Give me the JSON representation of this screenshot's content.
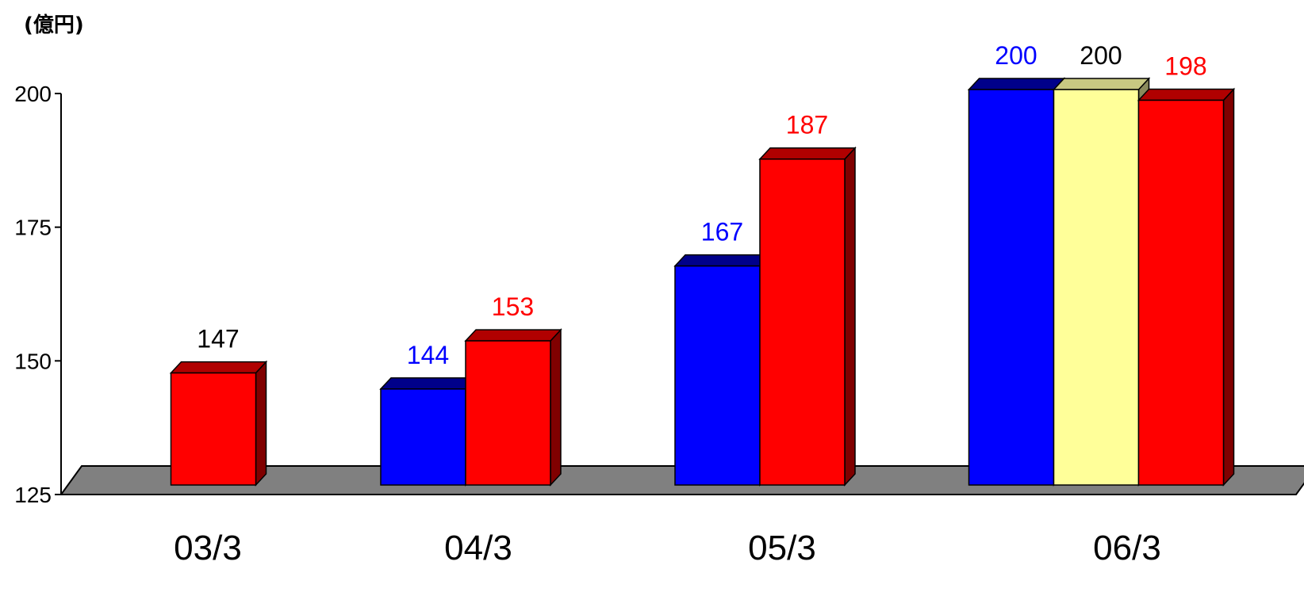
{
  "chart_data": {
    "type": "bar",
    "unit_label": "(億円)",
    "categories": [
      "03/3",
      "04/3",
      "05/3",
      "06/3"
    ],
    "ylim": [
      125,
      200
    ],
    "yticks": [
      125,
      150,
      175,
      200
    ],
    "grid": false,
    "legend": "none",
    "style": "3d",
    "series": [
      {
        "color": "#0000ff",
        "top_color": "#00008a",
        "side_color": "#000066",
        "label_color": "#0000ff",
        "values": [
          null,
          144,
          167,
          200
        ]
      },
      {
        "color": "#ffff99",
        "top_color": "#c8c882",
        "side_color": "#8a8a5c",
        "label_color": "#000000",
        "values": [
          null,
          null,
          null,
          200
        ]
      },
      {
        "color": "#ff0000",
        "top_color": "#b00000",
        "side_color": "#800000",
        "label_color": "#ff0000",
        "values": [
          147,
          153,
          187,
          198
        ]
      }
    ],
    "point_label_colors": [
      [
        null,
        null,
        null,
        null
      ],
      [
        null,
        null,
        null,
        null
      ],
      [
        "#000000",
        null,
        null,
        null
      ]
    ],
    "floor_color": "#808080"
  }
}
